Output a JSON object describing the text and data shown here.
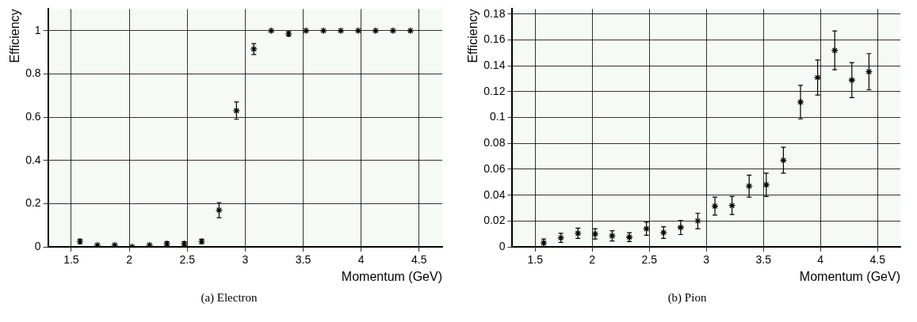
{
  "chart_data": [
    {
      "type": "scatter",
      "xlabel": "Momentum (GeV)",
      "ylabel": "Efficiency",
      "annotations": [
        "(a) Electron"
      ],
      "x": [
        1.575,
        1.725,
        1.875,
        2.025,
        2.175,
        2.325,
        2.475,
        2.625,
        2.775,
        2.925,
        3.075,
        3.225,
        3.375,
        3.525,
        3.675,
        3.825,
        3.975,
        4.125,
        4.275,
        4.425
      ],
      "series": [
        {
          "color": "#000000",
          "values": [
            0.025,
            0.008,
            0.008,
            0,
            0.008,
            0.015,
            0.015,
            0.025,
            0.17,
            0.63,
            0.915,
            1,
            0.985,
            1,
            1,
            1,
            1,
            1,
            1,
            1
          ],
          "errors": [
            0.01,
            null,
            null,
            null,
            null,
            0.008,
            0.008,
            0.01,
            0.035,
            0.04,
            0.025,
            null,
            0.01,
            null,
            null,
            null,
            null,
            null,
            null,
            null
          ]
        }
      ],
      "xlim": [
        1.3,
        4.7
      ],
      "xticks": [
        1.5,
        2,
        2.5,
        3,
        3.5,
        4,
        4.5
      ],
      "ylim": [
        0,
        1.1
      ],
      "yticks": [
        0,
        0.2,
        0.4,
        0.6,
        0.8,
        1
      ],
      "grid": true,
      "legend": false,
      "marker": "cross"
    },
    {
      "type": "scatter",
      "xlabel": "Momentum (GeV)",
      "ylabel": "Efficiency",
      "annotations": [
        "(b) Pion"
      ],
      "x": [
        1.575,
        1.725,
        1.875,
        2.025,
        2.175,
        2.325,
        2.475,
        2.625,
        2.775,
        2.925,
        3.075,
        3.225,
        3.375,
        3.525,
        3.675,
        3.825,
        3.975,
        4.125,
        4.275,
        4.425
      ],
      "series": [
        {
          "color": "#000000",
          "values": [
            0.003,
            0.007,
            0.0105,
            0.01,
            0.0085,
            0.0075,
            0.014,
            0.011,
            0.015,
            0.02,
            0.0315,
            0.032,
            0.047,
            0.048,
            0.067,
            0.112,
            0.131,
            0.152,
            0.129,
            0.1355
          ],
          "errors": [
            0.003,
            0.0035,
            0.004,
            0.004,
            0.004,
            0.0035,
            0.005,
            0.0045,
            0.0055,
            0.006,
            0.007,
            0.007,
            0.0085,
            0.009,
            0.01,
            0.013,
            0.0135,
            0.015,
            0.0135,
            0.014
          ]
        }
      ],
      "xlim": [
        1.3,
        4.7
      ],
      "xticks": [
        1.5,
        2,
        2.5,
        3,
        3.5,
        4,
        4.5
      ],
      "ylim": [
        0,
        0.184
      ],
      "yticks": [
        0,
        0.02,
        0.04,
        0.06,
        0.08,
        0.1,
        0.12,
        0.14,
        0.16,
        0.18
      ],
      "grid": true,
      "legend": false,
      "marker": "cross"
    }
  ]
}
